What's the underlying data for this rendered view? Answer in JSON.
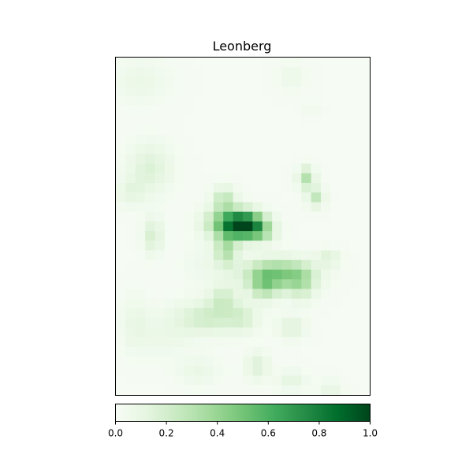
{
  "chart_data": {
    "type": "heatmap",
    "title": "Leonberg",
    "colormap": "Greens",
    "value_range": [
      0,
      1
    ],
    "colorbar": {
      "orientation": "horizontal",
      "placement": "bottom",
      "ticks": [
        "0.0",
        "0.2",
        "0.4",
        "0.6",
        "0.8",
        "1.0"
      ]
    },
    "axes_ticks_visible": false,
    "grid": {
      "cols": 26,
      "rows": 35,
      "blobs": [
        {
          "cx": 12.8,
          "cy": 16.9,
          "sx": 1.4,
          "sy": 0.9,
          "amp": 0.85
        },
        {
          "cx": 11.0,
          "cy": 16.7,
          "sx": 1.6,
          "sy": 1.1,
          "amp": 0.45
        },
        {
          "cx": 10.6,
          "cy": 14.2,
          "sx": 0.8,
          "sy": 0.9,
          "amp": 0.25
        },
        {
          "cx": 10.8,
          "cy": 19.5,
          "sx": 0.8,
          "sy": 1.2,
          "amp": 0.3
        },
        {
          "cx": 14.5,
          "cy": 17.7,
          "sx": 1.0,
          "sy": 0.7,
          "amp": 0.2
        },
        {
          "cx": 16.0,
          "cy": 22.0,
          "sx": 2.4,
          "sy": 1.1,
          "amp": 0.45
        },
        {
          "cx": 14.7,
          "cy": 23.3,
          "sx": 1.0,
          "sy": 1.0,
          "amp": 0.25
        },
        {
          "cx": 18.5,
          "cy": 23.0,
          "sx": 1.0,
          "sy": 1.2,
          "amp": 0.2
        },
        {
          "cx": 19.0,
          "cy": 12.0,
          "sx": 0.6,
          "sy": 0.8,
          "amp": 0.3
        },
        {
          "cx": 20.0,
          "cy": 14.0,
          "sx": 0.6,
          "sy": 0.7,
          "amp": 0.25
        },
        {
          "cx": 21.3,
          "cy": 20.3,
          "sx": 0.8,
          "sy": 0.6,
          "amp": 0.15
        },
        {
          "cx": 3.0,
          "cy": 11.0,
          "sx": 1.5,
          "sy": 1.8,
          "amp": 0.15
        },
        {
          "cx": 1.0,
          "cy": 13.5,
          "sx": 1.0,
          "sy": 1.0,
          "amp": 0.1
        },
        {
          "cx": 3.3,
          "cy": 18.0,
          "sx": 0.7,
          "sy": 1.3,
          "amp": 0.18
        },
        {
          "cx": 9.0,
          "cy": 26.5,
          "sx": 2.5,
          "sy": 1.2,
          "amp": 0.2
        },
        {
          "cx": 10.5,
          "cy": 24.5,
          "sx": 1.0,
          "sy": 1.0,
          "amp": 0.18
        },
        {
          "cx": 12.5,
          "cy": 26.5,
          "sx": 1.0,
          "sy": 1.0,
          "amp": 0.12
        },
        {
          "cx": 17.5,
          "cy": 27.5,
          "sx": 1.0,
          "sy": 0.8,
          "amp": 0.15
        },
        {
          "cx": 14.0,
          "cy": 31.5,
          "sx": 0.8,
          "sy": 1.0,
          "amp": 0.15
        },
        {
          "cx": 8.0,
          "cy": 32.0,
          "sx": 1.5,
          "sy": 1.0,
          "amp": 0.08
        },
        {
          "cx": 17.5,
          "cy": 33.0,
          "sx": 1.0,
          "sy": 0.7,
          "amp": 0.12
        },
        {
          "cx": 21.5,
          "cy": 33.8,
          "sx": 0.8,
          "sy": 0.6,
          "amp": 0.1
        },
        {
          "cx": 2.0,
          "cy": 2.0,
          "sx": 2.0,
          "sy": 1.5,
          "amp": 0.07
        },
        {
          "cx": 17.5,
          "cy": 1.5,
          "sx": 1.0,
          "sy": 1.0,
          "amp": 0.06
        },
        {
          "cx": 19.5,
          "cy": 4.8,
          "sx": 0.5,
          "sy": 0.5,
          "amp": 0.05
        },
        {
          "cx": 1.5,
          "cy": 27.0,
          "sx": 1.0,
          "sy": 2.0,
          "amp": 0.08
        },
        {
          "cx": 4.5,
          "cy": 28.5,
          "sx": 2.0,
          "sy": 1.5,
          "amp": 0.06
        },
        {
          "cx": 8.5,
          "cy": 21.0,
          "sx": 1.5,
          "sy": 1.5,
          "amp": 0.05
        }
      ]
    }
  },
  "colors": {
    "cmap_stops": [
      "#f7fcf5",
      "#e5f5e0",
      "#c7e9c0",
      "#a1d99b",
      "#74c476",
      "#41ab5d",
      "#238b45",
      "#006d2c",
      "#00441b"
    ],
    "frame": "#000000"
  }
}
